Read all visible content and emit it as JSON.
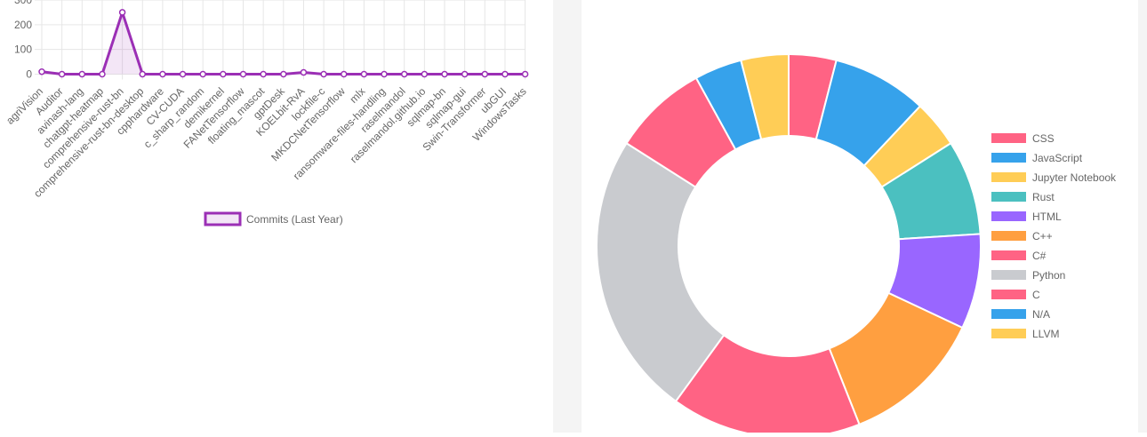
{
  "line_chart": {
    "legend_label": "Commits (Last Year)",
    "color": "#9b2fb5"
  },
  "donut_chart": {
    "legend": [
      {
        "label": "CSS",
        "color": "#ff6384"
      },
      {
        "label": "JavaScript",
        "color": "#36a2eb"
      },
      {
        "label": "Jupyter Notebook",
        "color": "#ffcd56"
      },
      {
        "label": "Rust",
        "color": "#4bc0c0"
      },
      {
        "label": "HTML",
        "color": "#9966ff"
      },
      {
        "label": "C++",
        "color": "#ff9f40"
      },
      {
        "label": "C#",
        "color": "#ff6384"
      },
      {
        "label": "Python",
        "color": "#c9cbcf"
      },
      {
        "label": "C",
        "color": "#ff6384"
      },
      {
        "label": "N/A",
        "color": "#36a2eb"
      },
      {
        "label": "LLVM",
        "color": "#ffcd56"
      }
    ]
  },
  "chart_data": [
    {
      "type": "line",
      "title": "",
      "xlabel": "",
      "ylabel": "",
      "ylim": [
        0,
        300
      ],
      "yticks": [
        0,
        100,
        200,
        300
      ],
      "categories": [
        "agriVision",
        "Auditor",
        "avinash-lang",
        "chatgpt-heatmap",
        "comprehensive-rust-bn",
        "comprehensive-rust-bn-desktop",
        "cpphardware",
        "CV-CUDA",
        "c_sharp_random",
        "demikernel",
        "FANetTensorflow",
        "floating_mascot",
        "gptDesk",
        "KOELbit-RvA",
        "lockfile-c",
        "MKDCNetTensorflow",
        "mlx",
        "ransomware-files-handling",
        "raselmandol",
        "raselmandol.github.io",
        "sqlmap-bn",
        "sqlmap-gui",
        "Swin-Transformer",
        "ubGUI",
        "WindowsTasks"
      ],
      "series": [
        {
          "name": "Commits (Last Year)",
          "values": [
            10,
            0,
            0,
            0,
            250,
            0,
            0,
            0,
            0,
            0,
            0,
            0,
            0,
            7,
            0,
            0,
            0,
            0,
            0,
            0,
            0,
            0,
            0,
            0,
            0
          ]
        }
      ],
      "legend": "bottom"
    },
    {
      "type": "pie",
      "variant": "doughnut",
      "labels": [
        "CSS",
        "JavaScript",
        "Jupyter Notebook",
        "Rust",
        "HTML",
        "C++",
        "C#",
        "Python",
        "C",
        "N/A",
        "LLVM"
      ],
      "values": [
        1,
        2,
        1,
        2,
        2,
        3,
        4,
        6,
        2,
        1,
        1
      ],
      "legend": "right"
    }
  ]
}
